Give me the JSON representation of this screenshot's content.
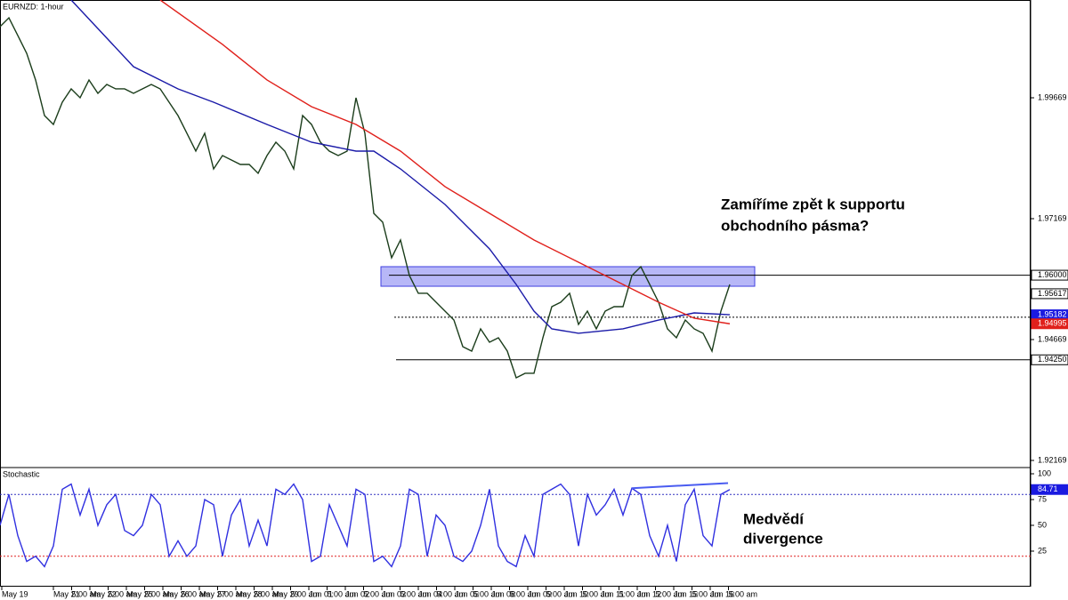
{
  "chart_data": [
    {
      "type": "line",
      "title": "EURNZD: 1-hour",
      "xlim": [
        0,
        115.8
      ],
      "xticks": [
        {
          "value": 0.2,
          "label": "May 19"
        },
        {
          "value": 6.0,
          "label": "May 21"
        },
        {
          "value": 8.05,
          "label": "5:00 am"
        },
        {
          "value": 10.1,
          "label": "May 22"
        },
        {
          "value": 12.15,
          "label": "5:00 am"
        },
        {
          "value": 14.2,
          "label": "May 25"
        },
        {
          "value": 16.25,
          "label": "5:00 am"
        },
        {
          "value": 18.3,
          "label": "May 26"
        },
        {
          "value": 20.35,
          "label": "5:00 am"
        },
        {
          "value": 22.4,
          "label": "May 27"
        },
        {
          "value": 24.45,
          "label": "5:00 am"
        },
        {
          "value": 26.5,
          "label": "May 28"
        },
        {
          "value": 28.55,
          "label": "5:00 am"
        },
        {
          "value": 30.6,
          "label": "May 29"
        },
        {
          "value": 32.65,
          "label": "5:00 am"
        },
        {
          "value": 34.7,
          "label": "Jun 01"
        },
        {
          "value": 36.75,
          "label": "5:00 am"
        },
        {
          "value": 38.8,
          "label": "Jun 02"
        },
        {
          "value": 40.85,
          "label": "5:00 am"
        },
        {
          "value": 42.9,
          "label": "Jun 03"
        },
        {
          "value": 44.95,
          "label": "5:00 am"
        },
        {
          "value": 47.0,
          "label": "Jun 04"
        },
        {
          "value": 49.05,
          "label": "5:00 am"
        },
        {
          "value": 51.1,
          "label": "Jun 05"
        },
        {
          "value": 53.15,
          "label": "5:00 am"
        },
        {
          "value": 55.2,
          "label": "Jun 08"
        },
        {
          "value": 57.25,
          "label": "5:00 am"
        },
        {
          "value": 59.3,
          "label": "Jun 09"
        },
        {
          "value": 61.35,
          "label": "5:00 am"
        },
        {
          "value": 63.4,
          "label": "Jun 10"
        },
        {
          "value": 65.45,
          "label": "5:00 am"
        },
        {
          "value": 67.5,
          "label": "Jun 11"
        },
        {
          "value": 69.55,
          "label": "5:00 am"
        },
        {
          "value": 71.6,
          "label": "Jun 12"
        },
        {
          "value": 73.65,
          "label": "5:00 am"
        },
        {
          "value": 75.7,
          "label": "Jun 15"
        },
        {
          "value": 77.75,
          "label": "5:00 am"
        },
        {
          "value": 79.8,
          "label": "Jun 16"
        },
        {
          "value": 81.85,
          "label": "5:00 am"
        }
      ],
      "ylim": [
        1.9204,
        2.01691
      ],
      "yticks": [
        1.99669,
        1.97169,
        1.94669,
        1.92169
      ],
      "series": [
        {
          "color": "#1b3d1b",
          "x": [
            0,
            1,
            2,
            3,
            4,
            5,
            6,
            7,
            8,
            9,
            10,
            11,
            12,
            13,
            14,
            15,
            16,
            17,
            18,
            19,
            20,
            21,
            22,
            23,
            24,
            25,
            26,
            27,
            28,
            29,
            30,
            31,
            32,
            33,
            34,
            35,
            36,
            37,
            38,
            39,
            40,
            41,
            42,
            43,
            44,
            45,
            46,
            47,
            48,
            49,
            50,
            51,
            52,
            53,
            54,
            55,
            56,
            57,
            58,
            59,
            60,
            61,
            62,
            63,
            64,
            65,
            66,
            67,
            68,
            69,
            70,
            71,
            72,
            73,
            74,
            75,
            76,
            77,
            78,
            79,
            80,
            81,
            82
          ],
          "values": [
            2.0114,
            2.01323,
            2.00956,
            2.00588,
            2.00037,
            1.99301,
            1.99118,
            1.99577,
            1.99853,
            1.99669,
            2.00037,
            1.99761,
            1.99945,
            1.99853,
            1.99853,
            1.99761,
            1.99853,
            1.99945,
            1.99853,
            1.99577,
            1.99301,
            1.98934,
            1.98566,
            1.98934,
            1.98198,
            1.98474,
            1.98382,
            1.9829,
            1.9829,
            1.98107,
            1.98474,
            1.9875,
            1.98566,
            1.98198,
            1.99301,
            1.99118,
            1.9875,
            1.98566,
            1.98474,
            1.98566,
            1.99669,
            1.98934,
            1.97279,
            1.97095,
            1.9636,
            1.96728,
            1.95993,
            1.95625,
            1.95625,
            1.95441,
            1.95257,
            1.95073,
            1.94522,
            1.9443,
            1.9489,
            1.94614,
            1.94706,
            1.9443,
            1.93879,
            1.93971,
            1.93971,
            1.94706,
            1.95349,
            1.95441,
            1.95625,
            1.94982,
            1.95257,
            1.9489,
            1.95257,
            1.95349,
            1.95349,
            1.95993,
            1.96176,
            1.95809,
            1.95441,
            1.9489,
            1.94706,
            1.95073,
            1.9489,
            1.94798,
            1.9443,
            1.95257,
            1.95809
          ]
        },
        {
          "color": "#1a1aa8",
          "x": [
            8,
            15,
            20,
            24,
            30,
            35,
            40,
            42,
            45,
            50,
            55,
            58,
            60,
            62,
            65,
            70,
            74,
            78,
            82
          ],
          "values": [
            2.01691,
            2.00312,
            1.99853,
            1.99577,
            1.99118,
            1.9875,
            1.98566,
            1.98566,
            1.98198,
            1.97463,
            1.96544,
            1.95809,
            1.95257,
            1.9489,
            1.94798,
            1.9489,
            1.95073,
            1.9522,
            1.95182
          ]
        },
        {
          "color": "#e0201b",
          "x": [
            18,
            25,
            30,
            35,
            40,
            45,
            50,
            55,
            60,
            65,
            70,
            74,
            78,
            82
          ],
          "values": [
            2.01691,
            2.00772,
            2.00037,
            1.99485,
            1.99118,
            1.98566,
            1.97831,
            1.97279,
            1.96728,
            1.96268,
            1.95809,
            1.95441,
            1.9511,
            1.94995
          ]
        }
      ],
      "zone": {
        "x": [
          42.8,
          84.8
        ],
        "values": [
          1.95771,
          1.96176
        ],
        "color": "#7b7bf0"
      },
      "lines": [
        {
          "value": 1.96,
          "x_start": 43.7,
          "dash": false
        },
        {
          "value": 1.9513,
          "x_start": 44.3,
          "dash": true
        },
        {
          "value": 1.9425,
          "x_start": 44.5,
          "dash": false
        }
      ],
      "price_tags": [
        {
          "value": 1.96,
          "label": "1.96000",
          "color": "#ffffff"
        },
        {
          "value": 1.95617,
          "label": "1.95617",
          "color": "#ffffff"
        },
        {
          "value": 1.95182,
          "label": "1.95182",
          "color": "#1a1ae0"
        },
        {
          "value": 1.94995,
          "label": "1.94995",
          "color": "#e0201b"
        },
        {
          "value": 1.9425,
          "label": "1.94250",
          "color": "#ffffff"
        }
      ],
      "annotation": [
        "Zamíříme zpět k supportu",
        "obchodního pásma?"
      ]
    },
    {
      "type": "line",
      "title": "Stochastic",
      "xlim": [
        0,
        115.8
      ],
      "ylim": [
        0,
        100
      ],
      "yticks": [
        100,
        75,
        50,
        25
      ],
      "series": [
        {
          "color": "#3030e0",
          "x": [
            0,
            1,
            2,
            3,
            4,
            5,
            6,
            7,
            8,
            9,
            10,
            11,
            12,
            13,
            14,
            15,
            16,
            17,
            18,
            19,
            20,
            21,
            22,
            23,
            24,
            25,
            26,
            27,
            28,
            29,
            30,
            31,
            32,
            33,
            34,
            35,
            36,
            37,
            38,
            39,
            40,
            41,
            42,
            43,
            44,
            45,
            46,
            47,
            48,
            49,
            50,
            51,
            52,
            53,
            54,
            55,
            56,
            57,
            58,
            59,
            60,
            61,
            62,
            63,
            64,
            65,
            66,
            67,
            68,
            69,
            70,
            71,
            72,
            73,
            74,
            75,
            76,
            77,
            78,
            79,
            80,
            81,
            82
          ],
          "values": [
            50,
            80,
            40,
            15,
            20,
            10,
            30,
            85,
            90,
            60,
            85,
            50,
            70,
            80,
            45,
            40,
            50,
            80,
            70,
            20,
            35,
            20,
            30,
            75,
            70,
            20,
            60,
            75,
            30,
            55,
            30,
            85,
            80,
            90,
            75,
            15,
            20,
            70,
            50,
            30,
            85,
            80,
            15,
            20,
            10,
            30,
            85,
            80,
            20,
            60,
            50,
            20,
            15,
            25,
            50,
            85,
            30,
            15,
            10,
            40,
            20,
            80,
            85,
            90,
            80,
            30,
            80,
            60,
            70,
            85,
            60,
            86,
            80,
            40,
            20,
            50,
            15,
            70,
            85,
            40,
            30,
            80,
            84.71
          ]
        }
      ],
      "levels": [
        {
          "value": 80,
          "color": "#3030c0"
        },
        {
          "value": 20,
          "color": "#e02020"
        }
      ],
      "price_tags": [
        {
          "value": 84.71,
          "label": "84.71",
          "color": "#1a1ae0"
        }
      ],
      "divergence": {
        "x": [
          71,
          81.8
        ],
        "values": [
          86,
          91
        ],
        "color": "#4a5cf0"
      },
      "annotation": [
        "Medvědí",
        "divergence"
      ]
    }
  ]
}
